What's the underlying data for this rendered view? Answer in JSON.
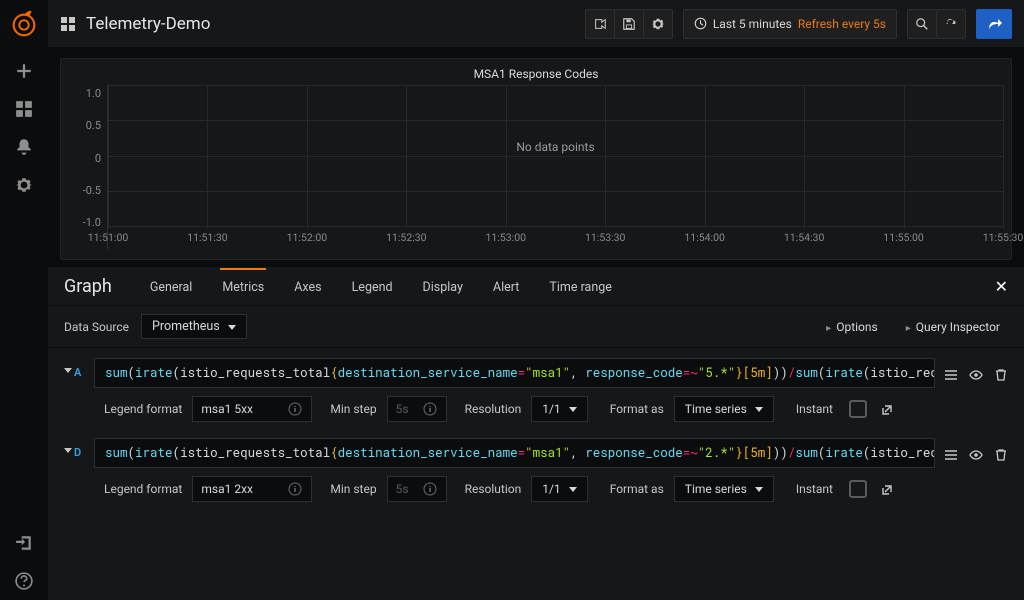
{
  "dashboard": {
    "title": "Telemetry-Demo"
  },
  "time_picker": {
    "range": "Last 5 minutes",
    "refresh": "Refresh every 5s"
  },
  "panel": {
    "title": "MSA1 Response Codes",
    "no_data": "No data points",
    "yticks": [
      "1.0",
      "0.5",
      "0",
      "-0.5",
      "-1.0"
    ],
    "xticks": [
      "11:51:00",
      "11:51:30",
      "11:52:00",
      "11:52:30",
      "11:53:00",
      "11:53:30",
      "11:54:00",
      "11:54:30",
      "11:55:00",
      "11:55:30"
    ],
    "grid_color": "#26282c",
    "bg_color": "#161719"
  },
  "editor": {
    "heading": "Graph",
    "tabs": {
      "general": "General",
      "metrics": "Metrics",
      "axes": "Axes",
      "legend": "Legend",
      "display": "Display",
      "alert": "Alert",
      "time_range": "Time range"
    },
    "active_tab": "metrics"
  },
  "datasource": {
    "label": "Data Source",
    "selected": "Prometheus",
    "options_btn": "Options",
    "inspector_btn": "Query Inspector"
  },
  "option_labels": {
    "legend_format": "Legend format",
    "min_step": "Min step",
    "min_step_ph": "5s",
    "resolution": "Resolution",
    "resolution_val": "1/1",
    "format_as": "Format as",
    "format_val": "Time series",
    "instant": "Instant"
  },
  "queries": [
    {
      "id": "A",
      "legend_format": "msa1 5xx",
      "expr_tokens": [
        {
          "cls": "fn",
          "t": "sum"
        },
        {
          "cls": "paren",
          "t": "("
        },
        {
          "cls": "fn",
          "t": "irate"
        },
        {
          "cls": "paren",
          "t": "("
        },
        {
          "cls": "metric",
          "t": "istio_requests_total"
        },
        {
          "cls": "brace",
          "t": "{"
        },
        {
          "cls": "lblname",
          "t": "destination_service_name"
        },
        {
          "cls": "op",
          "t": "="
        },
        {
          "cls": "str",
          "t": "\"msa1\""
        },
        {
          "cls": "metric",
          "t": ", "
        },
        {
          "cls": "lblname",
          "t": "response_code"
        },
        {
          "cls": "op",
          "t": "=~"
        },
        {
          "cls": "str",
          "t": "\"5.*\""
        },
        {
          "cls": "brace",
          "t": "}"
        },
        {
          "cls": "range",
          "t": "[5m]"
        },
        {
          "cls": "paren",
          "t": ")"
        },
        {
          "cls": "paren",
          "t": ")"
        },
        {
          "cls": "slash",
          "t": "/"
        },
        {
          "cls": "fn",
          "t": "sum"
        },
        {
          "cls": "paren",
          "t": "("
        },
        {
          "cls": "fn",
          "t": "irate"
        },
        {
          "cls": "paren",
          "t": "("
        },
        {
          "cls": "metric",
          "t": "istio_requests_"
        }
      ]
    },
    {
      "id": "D",
      "legend_format": "msa1 2xx",
      "expr_tokens": [
        {
          "cls": "fn",
          "t": "sum"
        },
        {
          "cls": "paren",
          "t": "("
        },
        {
          "cls": "fn",
          "t": "irate"
        },
        {
          "cls": "paren",
          "t": "("
        },
        {
          "cls": "metric",
          "t": "istio_requests_total"
        },
        {
          "cls": "brace",
          "t": "{"
        },
        {
          "cls": "lblname",
          "t": "destination_service_name"
        },
        {
          "cls": "op",
          "t": "="
        },
        {
          "cls": "str",
          "t": "\"msa1\""
        },
        {
          "cls": "metric",
          "t": ", "
        },
        {
          "cls": "lblname",
          "t": "response_code"
        },
        {
          "cls": "op",
          "t": "=~"
        },
        {
          "cls": "str",
          "t": "\"2.*\""
        },
        {
          "cls": "brace",
          "t": "}"
        },
        {
          "cls": "range",
          "t": "[5m]"
        },
        {
          "cls": "paren",
          "t": ")"
        },
        {
          "cls": "paren",
          "t": ")"
        },
        {
          "cls": "slash",
          "t": "/"
        },
        {
          "cls": "fn",
          "t": "sum"
        },
        {
          "cls": "paren",
          "t": "("
        },
        {
          "cls": "fn",
          "t": "irate"
        },
        {
          "cls": "paren",
          "t": "("
        },
        {
          "cls": "metric",
          "t": "istio_requests_"
        }
      ]
    }
  ]
}
